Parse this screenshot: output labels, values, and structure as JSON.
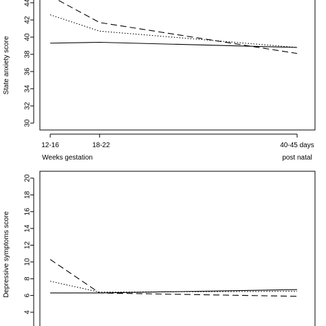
{
  "chart_data": [
    {
      "type": "line",
      "ylabel": "State anxiety score",
      "ylim": [
        30,
        44
      ],
      "yticks": [
        30,
        32,
        34,
        36,
        38,
        40,
        42,
        44
      ],
      "x_tick_labels": [
        "12-16",
        "18-22",
        "40-45 days"
      ],
      "x_sub_labels": [
        "Weeks gestation",
        "post natal"
      ],
      "x_positions": [
        0,
        1,
        5
      ],
      "series": [
        {
          "style": "solid",
          "values": [
            39.3,
            39.4,
            38.8
          ]
        },
        {
          "style": "dotted",
          "values": [
            42.6,
            40.7,
            38.8
          ]
        },
        {
          "style": "dashed",
          "values": [
            44.8,
            41.7,
            38.1
          ]
        }
      ],
      "grid": false
    },
    {
      "type": "line",
      "ylabel": "Depressive symptoms score",
      "ylim": [
        4,
        20
      ],
      "yticks": [
        4,
        6,
        8,
        10,
        12,
        14,
        16,
        18,
        20
      ],
      "x_positions": [
        0,
        1,
        5
      ],
      "series": [
        {
          "style": "solid",
          "values": [
            6.3,
            6.3,
            6.7
          ]
        },
        {
          "style": "dotted",
          "values": [
            7.7,
            6.4,
            6.5
          ]
        },
        {
          "style": "dashed",
          "values": [
            10.3,
            6.3,
            5.9
          ]
        }
      ],
      "grid": false
    }
  ]
}
